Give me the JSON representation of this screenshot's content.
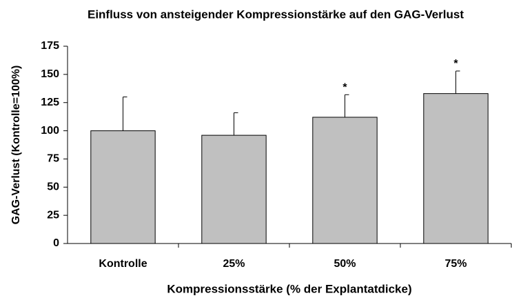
{
  "chart_data": {
    "type": "bar",
    "title": "Einfluss von ansteigender Kompressionstärke auf den GAG-Verlust",
    "x_label": "Kompressionsstärke (% der Explantatdicke)",
    "y_label": "GAG-Verlust (Kontrolle=100%)",
    "categories": [
      "Kontrolle",
      "25%",
      "50%",
      "75%"
    ],
    "values": [
      100,
      96,
      112,
      133
    ],
    "errors": [
      30,
      20,
      20,
      20
    ],
    "annotations": [
      null,
      null,
      "*",
      "*"
    ],
    "color": "#c0c0c0",
    "ylim": [
      0,
      175
    ],
    "yticks": [
      0,
      25,
      50,
      75,
      100,
      125,
      150,
      175
    ],
    "grid": false
  }
}
